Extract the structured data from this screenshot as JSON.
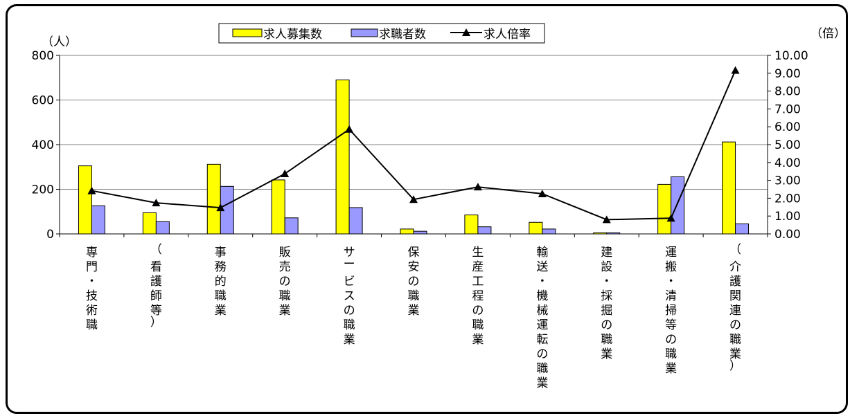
{
  "chart_data": {
    "type": "bar",
    "categories": [
      "専門・技術職",
      "（看護師等）",
      "事務的職業",
      "販売の職業",
      "サービスの職業",
      "保安の職業",
      "生産工程の職業",
      "輸送・機械運転の職業",
      "建設・採掘の職業",
      "運搬・清掃等の職業",
      "（介護関連の職業）"
    ],
    "series": [
      {
        "name": "求人募集数",
        "type": "bar",
        "axis": "left",
        "color": "#ffff00",
        "values": [
          305,
          95,
          312,
          242,
          690,
          22,
          85,
          52,
          5,
          222,
          412
        ]
      },
      {
        "name": "求職者数",
        "type": "bar",
        "axis": "left",
        "color": "#9999ff",
        "values": [
          126,
          55,
          213,
          72,
          118,
          12,
          32,
          22,
          5,
          256,
          45
        ]
      },
      {
        "name": "求人倍率",
        "type": "line",
        "axis": "right",
        "color": "#000000",
        "values": [
          2.42,
          1.74,
          1.47,
          3.37,
          5.86,
          1.93,
          2.63,
          2.25,
          0.8,
          0.88,
          9.16
        ]
      }
    ],
    "y_left": {
      "unit": "（人）",
      "min": 0,
      "max": 800,
      "ticks": [
        "0",
        "200",
        "400",
        "600",
        "800"
      ]
    },
    "y_right": {
      "unit": "（倍）",
      "min": 0,
      "max": 10,
      "ticks": [
        "0.00",
        "1.00",
        "2.00",
        "3.00",
        "4.00",
        "5.00",
        "6.00",
        "7.00",
        "8.00",
        "9.00",
        "10.00"
      ]
    },
    "grid": true,
    "legend": "top-center"
  }
}
